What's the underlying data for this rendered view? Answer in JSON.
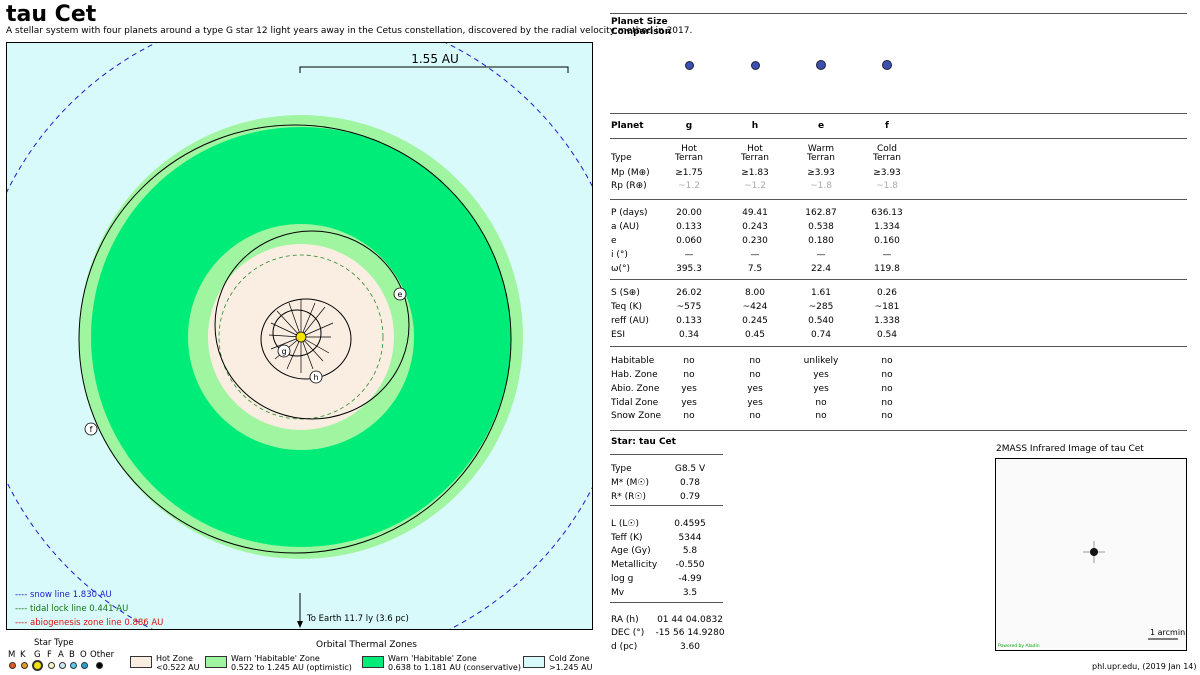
{
  "header": {
    "title": "tau Cet",
    "subtitle": "A stellar system with four planets around a type G star 12 light years away in the Cetus constellation, discovered by the radial velocity method in 2017."
  },
  "orbit": {
    "scale_label": "1.55 AU",
    "earth_label": "To Earth 11.7 ly (3.6 pc)",
    "lines": [
      {
        "label": "snow line 1.830 AU",
        "color": "#1a1acc"
      },
      {
        "label": "tidal lock line 0.441 AU",
        "color": "#117711"
      },
      {
        "label": "abiogenesis zone line 0.886 AU",
        "color": "#dd1111"
      }
    ],
    "planet_labels": [
      "g",
      "h",
      "e",
      "f"
    ]
  },
  "star_type": {
    "title": "Star Type",
    "labels": [
      "M",
      "K",
      "G",
      "F",
      "A",
      "B",
      "O",
      "Other"
    ],
    "colors": [
      "#e05a20",
      "#e69a20",
      "#f5e400",
      "#f5f5c0",
      "#c8ecf5",
      "#5ac8e8",
      "#2aa0d8",
      "#000000"
    ],
    "selected": "G"
  },
  "zones": {
    "title": "Orbital Thermal Zones",
    "items": [
      {
        "name": "Hot Zone",
        "range": "<0.522 AU",
        "color": "#faeee2"
      },
      {
        "name": "Warn 'Habitable' Zone",
        "range": "0.522 to 1.245 AU (optimistic)",
        "color": "#a0f5a0"
      },
      {
        "name": "Warn 'Habitable' Zone",
        "range": "0.638 to 1.181 AU (conservative)",
        "color": "#00ec78"
      },
      {
        "name": "Cold Zone",
        "range": ">1.245 AU",
        "color": "#d8fafa"
      }
    ]
  },
  "size_comparison": {
    "title_line1": "Planet Size",
    "title_line2": "Comparison"
  },
  "planet_table": {
    "header": "Planet",
    "planets": [
      "g",
      "h",
      "e",
      "f"
    ],
    "rows": [
      {
        "label": "Type",
        "values": [
          "Hot\nTerran",
          "Hot\nTerran",
          "Warm\nTerran",
          "Cold\nTerran"
        ]
      },
      {
        "label": "Mp (M⊕)",
        "values": [
          "≥1.75",
          "≥1.83",
          "≥3.93",
          "≥3.93"
        ]
      },
      {
        "label": "Rp (R⊕)",
        "values": [
          "~1.2",
          "~1.2",
          "~1.8",
          "~1.8"
        ],
        "gray": true
      },
      {
        "label": "P (days)",
        "values": [
          "20.00",
          "49.41",
          "162.87",
          "636.13"
        ]
      },
      {
        "label": "a (AU)",
        "values": [
          "0.133",
          "0.243",
          "0.538",
          "1.334"
        ]
      },
      {
        "label": "e",
        "values": [
          "0.060",
          "0.230",
          "0.180",
          "0.160"
        ]
      },
      {
        "label": "i (°)",
        "values": [
          "—",
          "—",
          "—",
          "—"
        ]
      },
      {
        "label": "ω(°)",
        "values": [
          "395.3",
          "7.5",
          "22.4",
          "119.8"
        ]
      },
      {
        "label": "S (S⊕)",
        "values": [
          "26.02",
          "8.00",
          "1.61",
          "0.26"
        ]
      },
      {
        "label": "Teq (K)",
        "values": [
          "~575",
          "~424",
          "~285",
          "~181"
        ]
      },
      {
        "label": "reff (AU)",
        "values": [
          "0.133",
          "0.245",
          "0.540",
          "1.338"
        ]
      },
      {
        "label": "ESI",
        "values": [
          "0.34",
          "0.45",
          "0.74",
          "0.54"
        ]
      },
      {
        "label": "Habitable",
        "values": [
          "no",
          "no",
          "unlikely",
          "no"
        ]
      },
      {
        "label": "Hab. Zone",
        "values": [
          "no",
          "no",
          "yes",
          "no"
        ]
      },
      {
        "label": "Abio. Zone",
        "values": [
          "yes",
          "yes",
          "yes",
          "no"
        ]
      },
      {
        "label": "Tidal Zone",
        "values": [
          "yes",
          "yes",
          "no",
          "no"
        ]
      },
      {
        "label": "Snow Zone",
        "values": [
          "no",
          "no",
          "no",
          "no"
        ]
      }
    ]
  },
  "star_table": {
    "title": "Star: tau Cet",
    "rows": [
      {
        "label": "Type",
        "value": "G8.5 V"
      },
      {
        "label": "M* (M☉)",
        "value": "0.78"
      },
      {
        "label": "R* (R☉)",
        "value": "0.79"
      },
      {
        "label": "L (L☉)",
        "value": "0.4595"
      },
      {
        "label": "Teff (K)",
        "value": "5344"
      },
      {
        "label": "Age (Gy)",
        "value": "5.8"
      },
      {
        "label": "Metallicity",
        "value": "-0.550"
      },
      {
        "label": "log g",
        "value": "-4.99"
      },
      {
        "label": "Mv",
        "value": "3.5"
      },
      {
        "label": "RA (h)",
        "value": "01 44 04.0832"
      },
      {
        "label": "DEC (°)",
        "value": "-15 56 14.9280"
      },
      {
        "label": "d (pc)",
        "value": "3.60"
      }
    ]
  },
  "infrared": {
    "title": "2MASS Infrared Image of tau Cet",
    "scale_label": "1 arcmin",
    "credit": "Powered by Aladin"
  },
  "footer": {
    "credit": "phl.upr.edu, (2019 Jan 14)"
  }
}
